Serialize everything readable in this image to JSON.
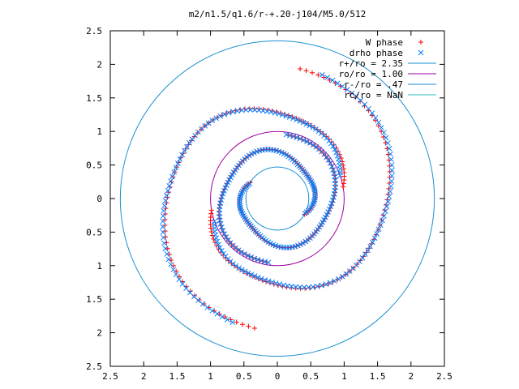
{
  "chart_data": {
    "type": "scatter",
    "title": "m2/n1.5/q1.6/r-+.20-j104/M5.0/512",
    "xlabel": "",
    "ylabel": "",
    "xlim": [
      -2.5,
      2.5
    ],
    "ylim": [
      -2.5,
      2.5
    ],
    "x_ticks": [
      "2.5",
      "2",
      "1.5",
      "1",
      "0.5",
      "0",
      "0.5",
      "1",
      "1.5",
      "2",
      "2.5"
    ],
    "y_ticks": [
      "2.5",
      "2",
      "1.5",
      "1",
      "0.5",
      "0",
      "0.5",
      "1",
      "1.5",
      "2",
      "2.5"
    ],
    "grid": false,
    "legend_position": "top-right",
    "series": [
      {
        "name": "W phase",
        "marker": "+",
        "color": "#ff0000",
        "arms": [
          {
            "r_start": 0.47,
            "r_end": 1.0,
            "theta_start": 150,
            "theta_end": 440
          },
          {
            "r_start": 0.47,
            "r_end": 1.0,
            "theta_start": 330,
            "theta_end": 620
          },
          {
            "r_start": 1.0,
            "r_end": 2.0,
            "theta_start": 10,
            "theta_end": 260
          },
          {
            "r_start": 1.0,
            "r_end": 2.0,
            "theta_start": 190,
            "theta_end": 440
          }
        ]
      },
      {
        "name": "drho phase",
        "marker": "x",
        "color": "#0080ff",
        "arms": [
          {
            "r_start": 0.47,
            "r_end": 1.0,
            "theta_start": 152,
            "theta_end": 442
          },
          {
            "r_start": 0.47,
            "r_end": 1.0,
            "theta_start": 332,
            "theta_end": 622
          },
          {
            "r_start": 1.0,
            "r_end": 2.0,
            "theta_start": 20,
            "theta_end": 250
          },
          {
            "r_start": 1.0,
            "r_end": 2.0,
            "theta_start": 200,
            "theta_end": 430
          }
        ]
      }
    ],
    "circles": [
      {
        "name": "r+/ro = 2.35",
        "r": 2.35,
        "color": "#1a8fd0"
      },
      {
        "name": "ro/ro = 1.00",
        "r": 1.0,
        "color": "#a000a0"
      },
      {
        "name": "r-/ro = .47",
        "r": 0.47,
        "color": "#1a8fd0"
      },
      {
        "name": "rc/ro = NaN",
        "r": null,
        "color": "#30c0c0"
      }
    ]
  }
}
